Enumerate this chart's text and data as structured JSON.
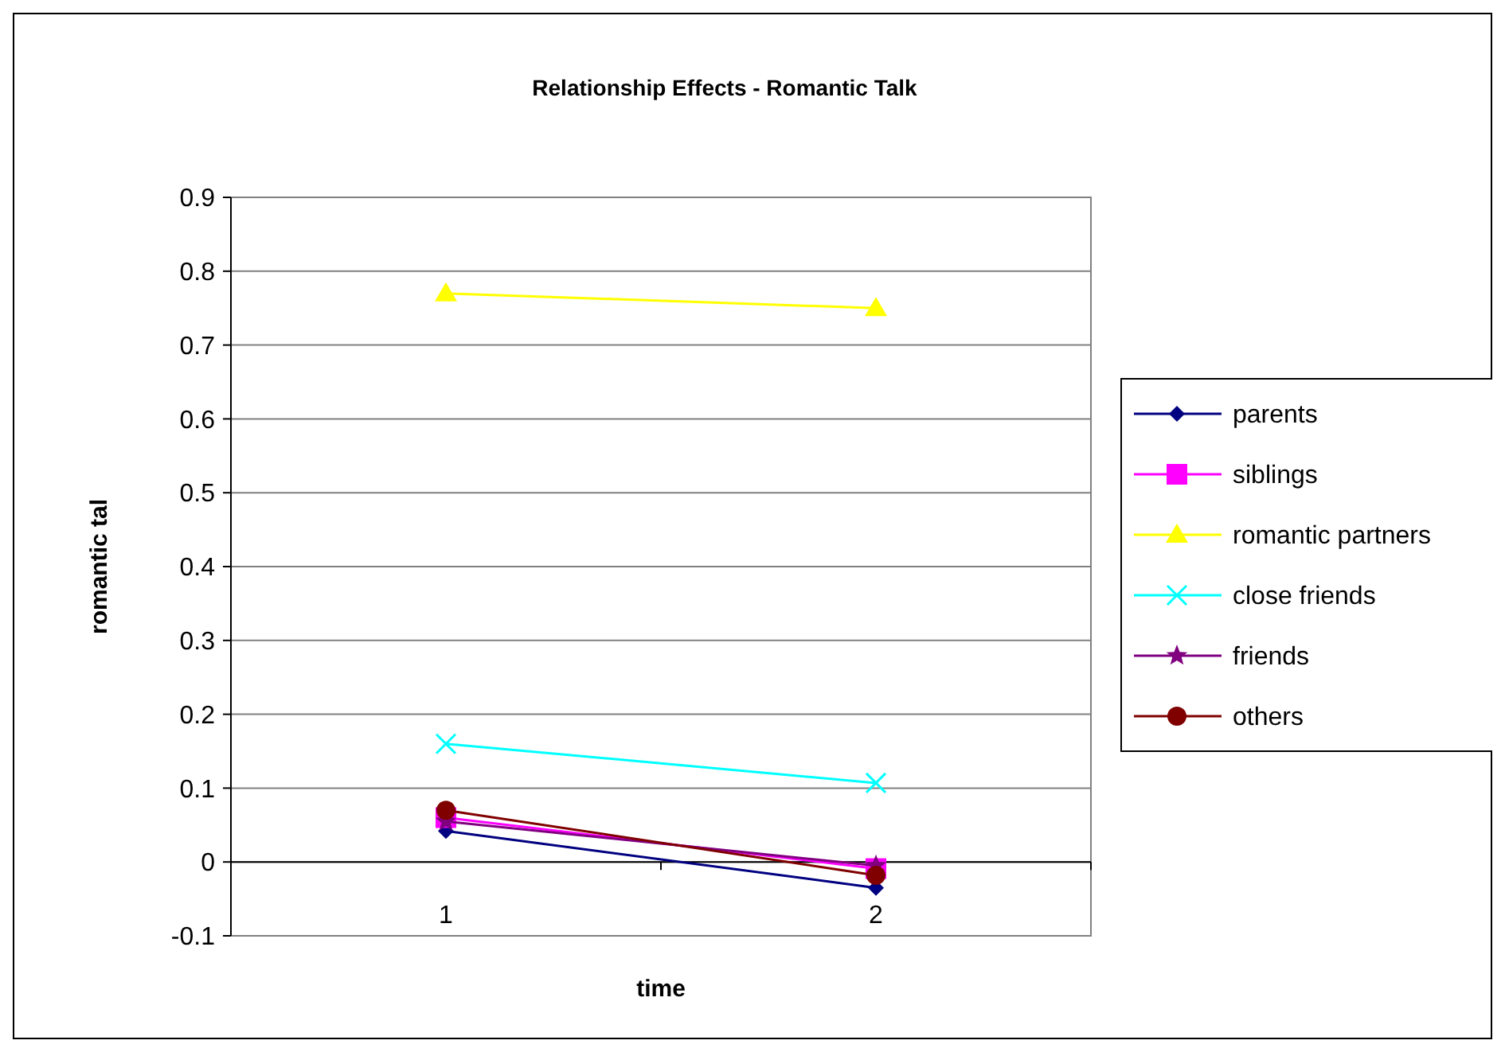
{
  "chart_data": {
    "type": "line",
    "title": "Relationship Effects - Romantic Talk",
    "xlabel": "time",
    "ylabel": "romantic tal",
    "categories": [
      "1",
      "2"
    ],
    "series": [
      {
        "name": "parents",
        "color": "#000080",
        "marker": "diamond",
        "values": [
          0.042,
          -0.035
        ]
      },
      {
        "name": "siblings",
        "color": "#ff00ff",
        "marker": "square",
        "values": [
          0.06,
          -0.009
        ]
      },
      {
        "name": "romantic partners",
        "color": "#ffff00",
        "marker": "triangle",
        "values": [
          0.77,
          0.75
        ]
      },
      {
        "name": "close friends",
        "color": "#00ffff",
        "marker": "cross",
        "values": [
          0.16,
          0.107
        ]
      },
      {
        "name": "friends",
        "color": "#800080",
        "marker": "star",
        "values": [
          0.055,
          -0.005
        ]
      },
      {
        "name": "others",
        "color": "#800000",
        "marker": "circle",
        "values": [
          0.07,
          -0.018
        ]
      }
    ],
    "ylim": [
      -0.1,
      0.9
    ],
    "yticks": [
      -0.1,
      0,
      0.1,
      0.2,
      0.3,
      0.4,
      0.5,
      0.6,
      0.7,
      0.8,
      0.9
    ],
    "grid": "y",
    "legend": "right"
  }
}
